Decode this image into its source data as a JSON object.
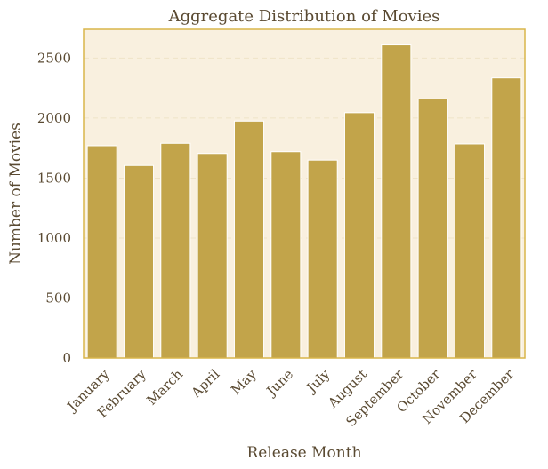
{
  "chart_data": {
    "type": "bar",
    "title": "Aggregate Distribution of Movies",
    "xlabel": "Release Month",
    "ylabel": "Number of Movies",
    "categories": [
      "January",
      "February",
      "March",
      "April",
      "May",
      "June",
      "July",
      "August",
      "September",
      "October",
      "November",
      "December"
    ],
    "values": [
      1770,
      1605,
      1790,
      1705,
      1975,
      1720,
      1650,
      2045,
      2610,
      2160,
      1785,
      2335
    ],
    "yticks": [
      0,
      500,
      1000,
      1500,
      2000,
      2500
    ],
    "ylim": [
      0,
      2740
    ],
    "grid": true,
    "colors": {
      "bar": "#c2a44a",
      "plot_background": "#f9f0df",
      "frame": "#d9b54a",
      "text": "#5a4a32",
      "grid": "#efe3c8"
    }
  }
}
